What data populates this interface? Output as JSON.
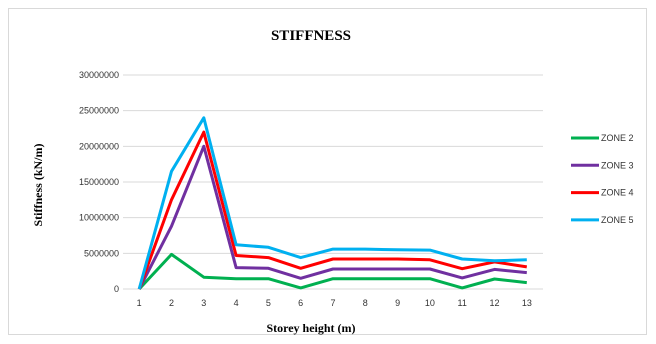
{
  "chart_data": {
    "type": "line",
    "title": "STIFFNESS",
    "xlabel": "Storey height (m)",
    "ylabel": "Stiffness (kN/m)",
    "categories": [
      "1",
      "2",
      "3",
      "4",
      "5",
      "6",
      "7",
      "8",
      "9",
      "10",
      "11",
      "12",
      "13"
    ],
    "ylim": [
      0,
      30000000
    ],
    "yticks": [
      "0",
      "5000000",
      "10000000",
      "15000000",
      "20000000",
      "25000000",
      "30000000"
    ],
    "grid": true,
    "legend_position": "right",
    "series": [
      {
        "name": "ZONE 2",
        "color": "#00b050",
        "values": [
          0,
          4850000,
          1650000,
          1450000,
          1450000,
          150000,
          1450000,
          1450000,
          1450000,
          1450000,
          150000,
          1400000,
          900000
        ]
      },
      {
        "name": "ZONE 3",
        "color": "#7030a0",
        "values": [
          0,
          8800000,
          20000000,
          3000000,
          2900000,
          1500000,
          2800000,
          2800000,
          2800000,
          2800000,
          1550000,
          2750000,
          2300000
        ]
      },
      {
        "name": "ZONE 4",
        "color": "#ff0000",
        "values": [
          0,
          12500000,
          22000000,
          4700000,
          4400000,
          2900000,
          4200000,
          4200000,
          4200000,
          4100000,
          2850000,
          3800000,
          3100000
        ]
      },
      {
        "name": "ZONE 5",
        "color": "#00b0f0",
        "values": [
          0,
          16500000,
          24000000,
          6200000,
          5850000,
          4400000,
          5600000,
          5600000,
          5500000,
          5450000,
          4200000,
          3950000,
          4100000
        ]
      }
    ]
  }
}
